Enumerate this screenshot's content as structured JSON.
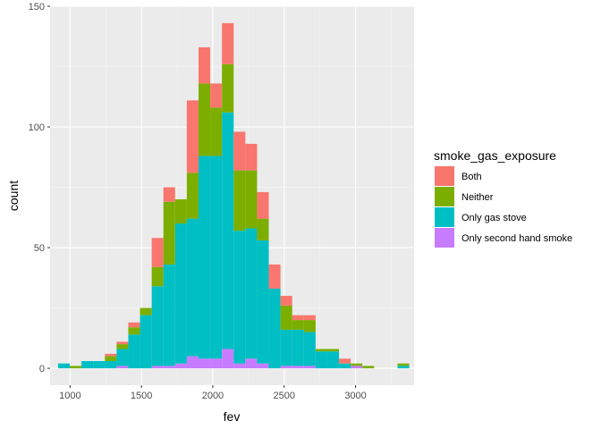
{
  "chart_data": {
    "type": "bar",
    "stacked": true,
    "xlabel": "fev",
    "ylabel": "count",
    "xlim": [
      860,
      3410
    ],
    "ylim": [
      -7,
      150
    ],
    "x_ticks": [
      1000,
      1500,
      2000,
      2500,
      3000
    ],
    "y_ticks": [
      0,
      50,
      100,
      150
    ],
    "bin_width": 82,
    "grid": true,
    "legend": {
      "title": "smoke_gas_exposure",
      "placement": "right",
      "entries": [
        {
          "key": "both",
          "label": "Both",
          "color": "#F8766D"
        },
        {
          "key": "neither",
          "label": "Neither",
          "color": "#7CAE00"
        },
        {
          "key": "gas",
          "label": "Only gas stove",
          "color": "#00BFC4"
        },
        {
          "key": "second",
          "label": "Only second hand smoke",
          "color": "#C77CFF"
        }
      ]
    },
    "stack_order_bottom_to_top": [
      "second",
      "gas",
      "neither",
      "both"
    ],
    "bins": [
      {
        "center": 957,
        "second": 0,
        "gas": 2,
        "neither": 0,
        "both": 0
      },
      {
        "center": 1039,
        "second": 0,
        "gas": 0,
        "neither": 1,
        "both": 0
      },
      {
        "center": 1121,
        "second": 0,
        "gas": 3,
        "neither": 0,
        "both": 0
      },
      {
        "center": 1203,
        "second": 0,
        "gas": 3,
        "neither": 0,
        "both": 0
      },
      {
        "center": 1285,
        "second": 0,
        "gas": 3,
        "neither": 2,
        "both": 1
      },
      {
        "center": 1367,
        "second": 1,
        "gas": 7,
        "neither": 2,
        "both": 1
      },
      {
        "center": 1449,
        "second": 0,
        "gas": 14,
        "neither": 3,
        "both": 2
      },
      {
        "center": 1531,
        "second": 0,
        "gas": 22,
        "neither": 3,
        "both": 0
      },
      {
        "center": 1613,
        "second": 1,
        "gas": 33,
        "neither": 8,
        "both": 12
      },
      {
        "center": 1695,
        "second": 1,
        "gas": 42,
        "neither": 26,
        "both": 6
      },
      {
        "center": 1777,
        "second": 2,
        "gas": 58,
        "neither": 10,
        "both": 0
      },
      {
        "center": 1859,
        "second": 5,
        "gas": 57,
        "neither": 19,
        "both": 30
      },
      {
        "center": 1941,
        "second": 4,
        "gas": 84,
        "neither": 30,
        "both": 15
      },
      {
        "center": 2023,
        "second": 4,
        "gas": 84,
        "neither": 20,
        "both": 10
      },
      {
        "center": 2105,
        "second": 8,
        "gas": 98,
        "neither": 20,
        "both": 17
      },
      {
        "center": 2187,
        "second": 2,
        "gas": 55,
        "neither": 25,
        "both": 16
      },
      {
        "center": 2269,
        "second": 4,
        "gas": 54,
        "neither": 24,
        "both": 11
      },
      {
        "center": 2351,
        "second": 2,
        "gas": 51,
        "neither": 9,
        "both": 11
      },
      {
        "center": 2433,
        "second": 0,
        "gas": 33,
        "neither": 0,
        "both": 10
      },
      {
        "center": 2515,
        "second": 1,
        "gas": 15,
        "neither": 10,
        "both": 4
      },
      {
        "center": 2597,
        "second": 1,
        "gas": 15,
        "neither": 4,
        "both": 2
      },
      {
        "center": 2679,
        "second": 1,
        "gas": 14,
        "neither": 5,
        "both": 2
      },
      {
        "center": 2761,
        "second": 0,
        "gas": 7,
        "neither": 1,
        "both": 0
      },
      {
        "center": 2843,
        "second": 0,
        "gas": 7,
        "neither": 1,
        "both": 0
      },
      {
        "center": 2925,
        "second": 0,
        "gas": 2,
        "neither": 0,
        "both": 2
      },
      {
        "center": 3007,
        "second": 1,
        "gas": 0,
        "neither": 1,
        "both": 0
      },
      {
        "center": 3089,
        "second": 0,
        "gas": 0,
        "neither": 1,
        "both": 0
      },
      {
        "center": 3171,
        "second": 0,
        "gas": 0,
        "neither": 0,
        "both": 0
      },
      {
        "center": 3253,
        "second": 0,
        "gas": 0,
        "neither": 0,
        "both": 0
      },
      {
        "center": 3335,
        "second": 0,
        "gas": 1,
        "neither": 1,
        "both": 0
      }
    ]
  }
}
